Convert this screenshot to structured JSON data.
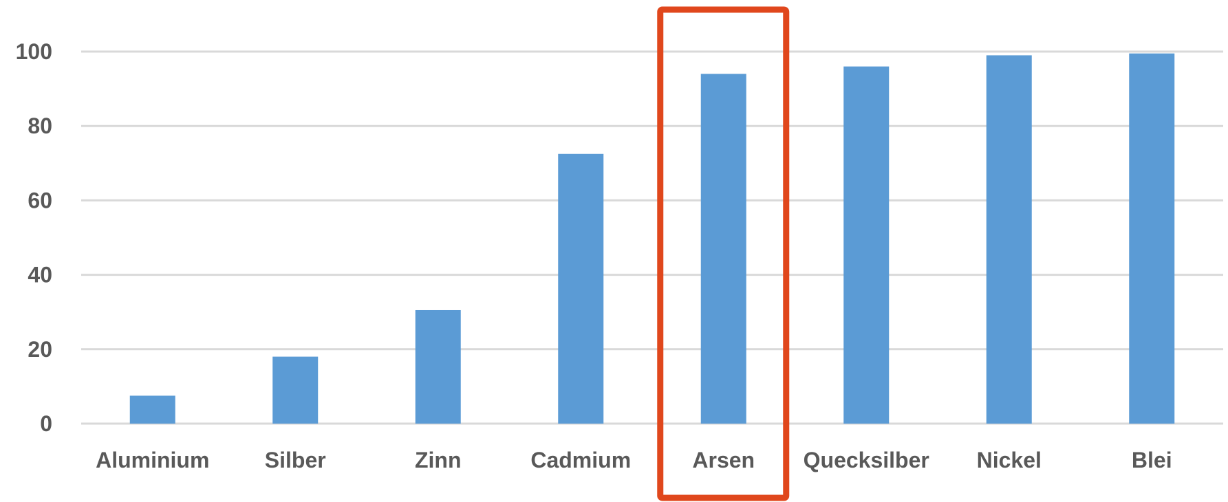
{
  "chart_data": {
    "type": "bar",
    "categories": [
      "Aluminium",
      "Silber",
      "Zinn",
      "Cadmium",
      "Arsen",
      "Quecksilber",
      "Nickel",
      "Blei"
    ],
    "values": [
      7.5,
      18,
      30.5,
      72.5,
      94,
      96,
      99,
      99.5
    ],
    "ylim": [
      0,
      100
    ],
    "yticks": [
      0,
      20,
      40,
      60,
      80,
      100
    ],
    "grid": true,
    "bar_color": "#5b9bd5",
    "highlight": {
      "category": "Arsen",
      "color": "#e0471c"
    }
  }
}
